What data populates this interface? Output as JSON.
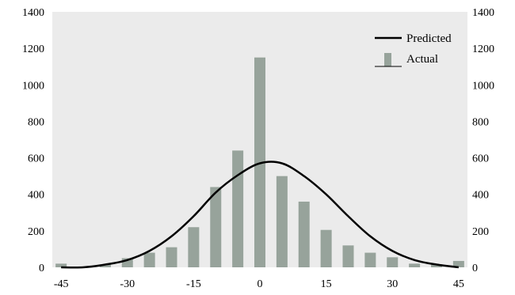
{
  "chart_data": {
    "type": "bar",
    "title": "",
    "xlabel": "",
    "ylabel": "",
    "x": [
      -45,
      -40,
      -35,
      -30,
      -25,
      -20,
      -15,
      -10,
      -5,
      0,
      5,
      10,
      15,
      20,
      25,
      30,
      35,
      40,
      45
    ],
    "xticks": [
      -45,
      -30,
      -15,
      0,
      15,
      30,
      45
    ],
    "xlim": [
      -47,
      47
    ],
    "ylim": [
      0,
      1400
    ],
    "yticks": [
      0,
      200,
      400,
      600,
      800,
      1000,
      1200,
      1400
    ],
    "grid": false,
    "legend_position": "top-right",
    "plot_background": "#ebebeb",
    "series": [
      {
        "name": "Actual",
        "type": "bar",
        "color": "#97a39b",
        "values": [
          20,
          0,
          15,
          50,
          80,
          110,
          220,
          440,
          640,
          1150,
          500,
          360,
          205,
          120,
          80,
          55,
          20,
          15,
          35
        ]
      },
      {
        "name": "Predicted",
        "type": "line",
        "color": "#000000",
        "values": [
          0,
          0,
          15,
          40,
          90,
          170,
          280,
          410,
          505,
          570,
          570,
          500,
          400,
          280,
          170,
          90,
          40,
          15,
          0
        ]
      }
    ]
  }
}
